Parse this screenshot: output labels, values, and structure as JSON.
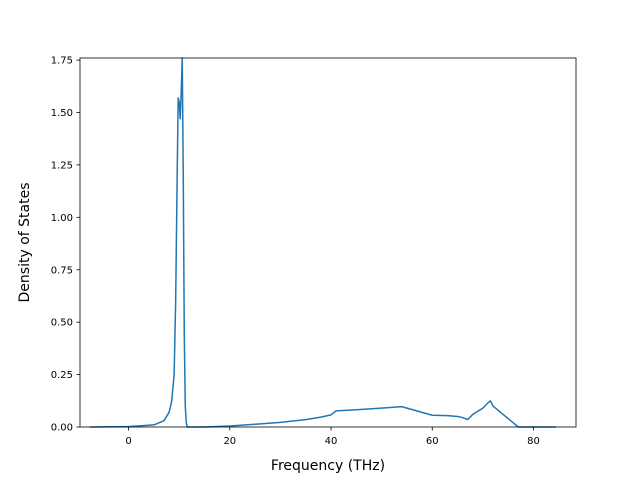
{
  "chart_data": {
    "type": "line",
    "title": "",
    "xlabel": "Frequency (THz)",
    "ylabel": "Density of States",
    "xlim": [
      -9.6,
      88.4
    ],
    "ylim": [
      0.0,
      1.76
    ],
    "xticks": [
      0,
      20,
      40,
      60,
      80
    ],
    "xtick_labels": [
      "0",
      "20",
      "40",
      "60",
      "80"
    ],
    "yticks": [
      0.0,
      0.25,
      0.5,
      0.75,
      1.0,
      1.25,
      1.5,
      1.75
    ],
    "ytick_labels": [
      "0.00",
      "0.25",
      "0.50",
      "0.75",
      "1.00",
      "1.25",
      "1.50",
      "1.75"
    ],
    "grid": false,
    "series": [
      {
        "color": "#1f77b4",
        "x": [
          -7.6,
          0,
          5,
          7,
          8,
          8.5,
          9,
          9.3,
          9.6,
          9.8,
          10.0,
          10.2,
          10.4,
          10.6,
          10.8,
          11.0,
          11.2,
          11.4,
          11.6,
          11.8,
          12.0,
          15,
          17,
          20,
          25,
          30,
          35,
          38,
          40,
          41,
          45,
          50,
          54,
          55,
          60,
          63,
          65,
          66,
          67,
          68,
          70,
          71,
          71.5,
          72,
          74,
          75,
          76,
          77,
          84.4
        ],
        "y": [
          0.0,
          0.002,
          0.01,
          0.03,
          0.07,
          0.12,
          0.25,
          0.6,
          1.2,
          1.57,
          1.55,
          1.47,
          1.6,
          1.79,
          1.2,
          0.45,
          0.1,
          0.02,
          0.0,
          0.0,
          0.0,
          0.0,
          0.002,
          0.005,
          0.013,
          0.022,
          0.035,
          0.047,
          0.058,
          0.077,
          0.082,
          0.09,
          0.097,
          0.09,
          0.056,
          0.054,
          0.05,
          0.045,
          0.035,
          0.06,
          0.09,
          0.115,
          0.125,
          0.1,
          0.06,
          0.04,
          0.02,
          0.0,
          0.0
        ]
      }
    ]
  }
}
